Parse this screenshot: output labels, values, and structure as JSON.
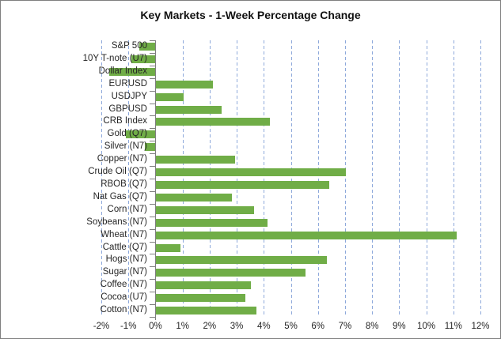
{
  "title": "Key Markets - 1-Week Percentage Change",
  "colors": {
    "bar": "#70AD47",
    "gridline": "#8EA9DB",
    "axis": "#7F7F7F",
    "text": "#262626",
    "border": "#7F7F7F",
    "background": "#FFFFFF"
  },
  "chart_data": {
    "type": "bar",
    "orientation": "horizontal",
    "title": "Key Markets - 1-Week Percentage Change",
    "xlabel": "",
    "ylabel": "",
    "categories": [
      "S&P 500",
      "10Y T-note (U7)",
      "Dollar Index",
      "EURUSD",
      "USDJPY",
      "GBPUSD",
      "CRB Index",
      "Gold (Q7)",
      "Silver (N7)",
      "Copper (N7)",
      "Crude Oil (Q7)",
      "RBOB (Q7)",
      "Nat Gas (Q7)",
      "Corn (N7)",
      "Soybeans (N7)",
      "Wheat (N7)",
      "Cattle (Q7)",
      "Hogs (N7)",
      "Sugar (N7)",
      "Coffee (N7)",
      "Cocoa (U7)",
      "Cotton (N7)"
    ],
    "values": [
      -0.6,
      -0.9,
      -1.7,
      2.1,
      1.0,
      2.4,
      4.2,
      -1.1,
      -0.4,
      2.9,
      7.0,
      6.4,
      2.8,
      3.6,
      4.1,
      11.1,
      0.9,
      6.3,
      5.5,
      3.5,
      3.3,
      3.7
    ],
    "value_unit": "%",
    "xlim": [
      -2,
      12
    ],
    "tick_values": [
      -2,
      -1,
      0,
      1,
      2,
      3,
      4,
      5,
      6,
      7,
      8,
      9,
      10,
      11,
      12
    ],
    "tick_labels": [
      "-2%",
      "-1%",
      "0%",
      "1%",
      "2%",
      "3%",
      "4%",
      "5%",
      "6%",
      "7%",
      "8%",
      "9%",
      "10%",
      "11%",
      "12%"
    ],
    "grid": "vertical-dashed",
    "legend": "none"
  }
}
